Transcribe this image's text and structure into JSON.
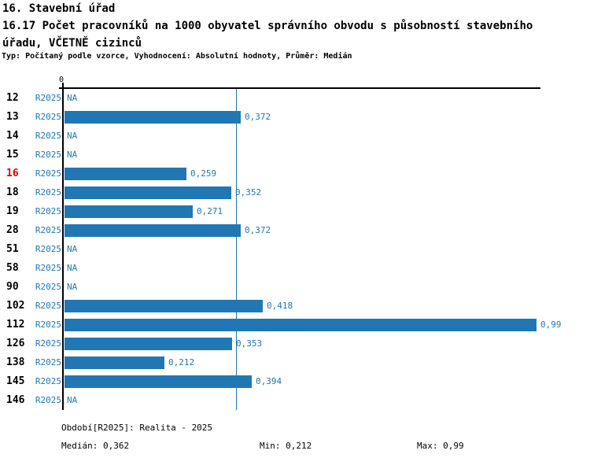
{
  "header": {
    "title": "16. Stavební úřad",
    "subtitle_line1": "16.17 Počet pracovníků na 1000 obyvatel správního obvodu s působností stavebního",
    "subtitle_line2": "úřadu, VČETNĚ cizinců",
    "meta": "Typ: Počítaný podle vzorce, Vyhodnocení: Absolutní hodnoty, Průměr: Medián"
  },
  "chart_data": {
    "type": "bar",
    "orientation": "horizontal",
    "title": "16.17 Počet pracovníků na 1000 obyvatel správního obvodu s působností stavebního úřadu, VČETNĚ cizinců",
    "xlabel": "",
    "ylabel": "",
    "xlim": [
      0,
      1.0
    ],
    "axis_zero_label": "0",
    "grid": false,
    "median_reference_line": 0.362,
    "series_label": "R2025",
    "rows": [
      {
        "id": "12",
        "period": "R2025",
        "value": null,
        "display": "NA",
        "highlight": false
      },
      {
        "id": "13",
        "period": "R2025",
        "value": 0.372,
        "display": "0,372",
        "highlight": false
      },
      {
        "id": "14",
        "period": "R2025",
        "value": null,
        "display": "NA",
        "highlight": false
      },
      {
        "id": "15",
        "period": "R2025",
        "value": null,
        "display": "NA",
        "highlight": false
      },
      {
        "id": "16",
        "period": "R2025",
        "value": 0.259,
        "display": "0,259",
        "highlight": true
      },
      {
        "id": "18",
        "period": "R2025",
        "value": 0.352,
        "display": "0,352",
        "highlight": false
      },
      {
        "id": "19",
        "period": "R2025",
        "value": 0.271,
        "display": "0,271",
        "highlight": false
      },
      {
        "id": "28",
        "period": "R2025",
        "value": 0.372,
        "display": "0,372",
        "highlight": false
      },
      {
        "id": "51",
        "period": "R2025",
        "value": null,
        "display": "NA",
        "highlight": false
      },
      {
        "id": "58",
        "period": "R2025",
        "value": null,
        "display": "NA",
        "highlight": false
      },
      {
        "id": "90",
        "period": "R2025",
        "value": null,
        "display": "NA",
        "highlight": false
      },
      {
        "id": "102",
        "period": "R2025",
        "value": 0.418,
        "display": "0,418",
        "highlight": false
      },
      {
        "id": "112",
        "period": "R2025",
        "value": 0.99,
        "display": "0,99",
        "highlight": false
      },
      {
        "id": "126",
        "period": "R2025",
        "value": 0.353,
        "display": "0,353",
        "highlight": false
      },
      {
        "id": "138",
        "period": "R2025",
        "value": 0.212,
        "display": "0,212",
        "highlight": false
      },
      {
        "id": "145",
        "period": "R2025",
        "value": 0.394,
        "display": "0,394",
        "highlight": false
      },
      {
        "id": "146",
        "period": "R2025",
        "value": null,
        "display": "NA",
        "highlight": false
      }
    ],
    "colors": {
      "bar": "#2077b4",
      "blue_text": "#1f77b4",
      "highlight_red": "#dd0000",
      "axis": "#000000"
    }
  },
  "footer": {
    "period_info": "Období[R2025]: Realita - 2025",
    "median": "Medián: 0,362",
    "min": "Min: 0,212",
    "max": "Max: 0,99"
  }
}
